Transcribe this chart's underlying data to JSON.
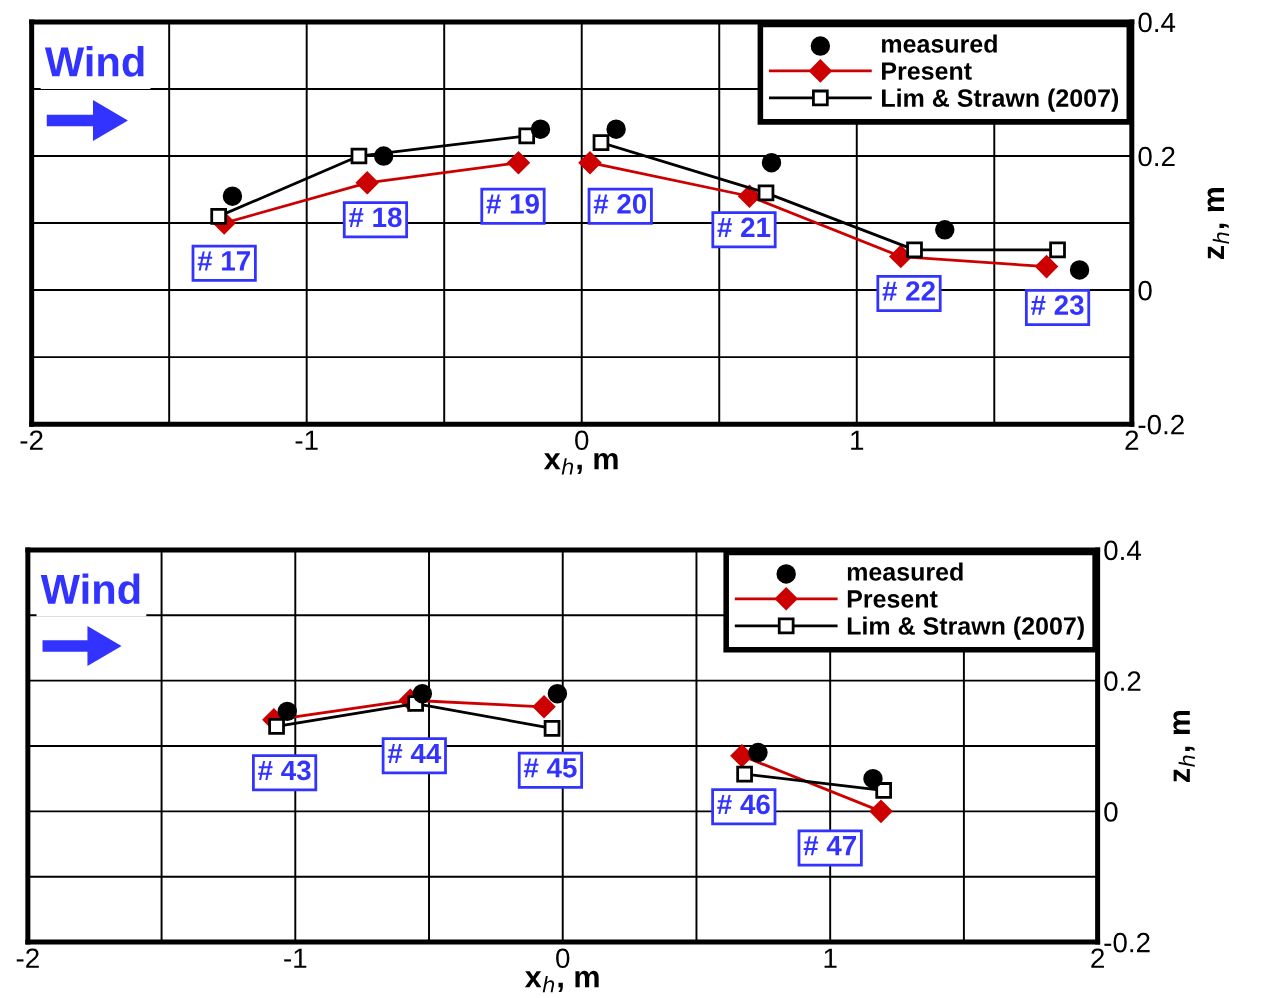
{
  "chart_data": [
    {
      "type": "line",
      "xlabel": "x$_{h}$, m",
      "ylabel": "z$_{h}$, m",
      "xlim": [
        -2,
        2
      ],
      "ylim": [
        -0.2,
        0.4
      ],
      "xticks": [
        -2,
        {
          "value": -1.5,
          "label": null
        },
        -1,
        {
          "value": -0.5,
          "label": null
        },
        0,
        {
          "value": 0.5,
          "label": null
        },
        1,
        {
          "value": 1.5,
          "label": null
        },
        2
      ],
      "yticks": [
        -0.2,
        {
          "value": -0.1,
          "label": null
        },
        0,
        {
          "value": 0.1,
          "label": null
        },
        0.2,
        {
          "value": 0.3,
          "label": null
        },
        0.4
      ],
      "grid": true,
      "legend": "top right",
      "series": [
        {
          "name": "measured",
          "type": "scatter",
          "color": "#000000",
          "marker": "circle",
          "x": [
            -1.27,
            -0.72,
            -0.15,
            0.125,
            0.69,
            1.32,
            1.81
          ],
          "values": [
            0.14,
            0.2,
            0.24,
            0.24,
            0.19,
            0.09,
            0.03
          ]
        },
        {
          "name": "Present",
          "color": "#cc0000",
          "marker": "diamond",
          "x": [
            -1.3,
            -0.78,
            -0.23,
            null,
            0.03,
            0.61,
            1.16,
            1.69
          ],
          "values": [
            0.1,
            0.16,
            0.19,
            null,
            0.19,
            0.14,
            0.05,
            0.035
          ]
        },
        {
          "name": "Lim & Strawn (2007)",
          "color": "#000000",
          "marker": "square",
          "x": [
            -1.32,
            -0.81,
            -0.2,
            null,
            0.07,
            0.67,
            1.21,
            1.73
          ],
          "values": [
            0.11,
            0.2,
            0.23,
            null,
            0.22,
            0.145,
            0.06,
            0.06
          ]
        }
      ],
      "annotations": [
        "Wind",
        {
          "text": "# 17",
          "x": -1.3,
          "y": 0.04
        },
        {
          "text": "# 18",
          "x": -0.75,
          "y": 0.105
        },
        {
          "text": "# 19",
          "x": -0.25,
          "y": 0.125
        },
        {
          "text": "# 20",
          "x": 0.14,
          "y": 0.125
        },
        {
          "text": "# 21",
          "x": 0.59,
          "y": 0.09
        },
        {
          "text": "# 22",
          "x": 1.19,
          "y": -0.005
        },
        {
          "text": "# 23",
          "x": 1.73,
          "y": -0.026
        }
      ]
    },
    {
      "type": "line",
      "xlabel": "x$_{h}$, m",
      "ylabel": "z$_{h}$, m",
      "xlim": [
        -2,
        2
      ],
      "ylim": [
        -0.2,
        0.4
      ],
      "xticks": [
        -2,
        {
          "value": -1.5,
          "label": null
        },
        -1,
        {
          "value": -0.5,
          "label": null
        },
        0,
        {
          "value": 0.5,
          "label": null
        },
        1,
        {
          "value": 1.5,
          "label": null
        },
        2
      ],
      "yticks": [
        -0.2,
        {
          "value": -0.1,
          "label": null
        },
        0,
        {
          "value": 0.1,
          "label": null
        },
        0.2,
        {
          "value": 0.3,
          "label": null
        },
        0.4
      ],
      "grid": true,
      "legend": "top right",
      "series": [
        {
          "name": "measured",
          "type": "scatter",
          "color": "#000000",
          "marker": "circle",
          "x": [
            -1.03,
            -0.525,
            -0.02,
            0.73,
            1.16
          ],
          "values": [
            0.153,
            0.18,
            0.18,
            0.09,
            0.05
          ]
        },
        {
          "name": "Present",
          "color": "#cc0000",
          "marker": "diamond",
          "x": [
            -1.08,
            -0.57,
            -0.07,
            null,
            0.67,
            1.19
          ],
          "values": [
            0.14,
            0.17,
            0.16,
            null,
            0.085,
            0.0
          ]
        },
        {
          "name": "Lim & Strawn (2007)",
          "color": "#000000",
          "marker": "square",
          "x": [
            -1.07,
            -0.55,
            -0.04,
            null,
            0.68,
            1.2
          ],
          "values": [
            0.13,
            0.165,
            0.127,
            null,
            0.057,
            0.032
          ]
        }
      ],
      "annotations": [
        "Wind",
        {
          "text": "# 43",
          "x": -1.04,
          "y": 0.059
        },
        {
          "text": "# 44",
          "x": -0.555,
          "y": 0.085
        },
        {
          "text": "# 45",
          "x": -0.046,
          "y": 0.063
        },
        {
          "text": "# 46",
          "x": 0.677,
          "y": 0.007
        },
        {
          "text": "# 47",
          "x": 1.0,
          "y": -0.056
        }
      ]
    }
  ]
}
